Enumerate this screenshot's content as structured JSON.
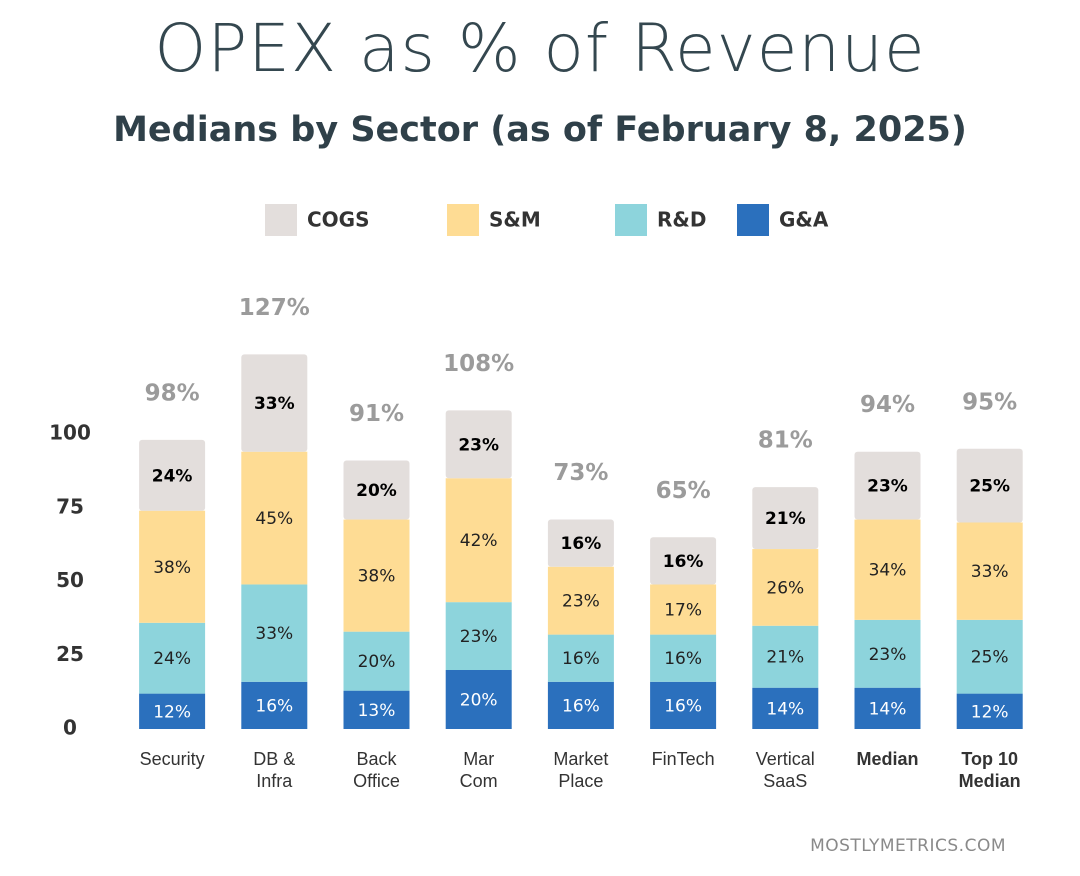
{
  "chart_data": {
    "type": "stacked_bar",
    "title": "OPEX as % of Revenue",
    "subtitle": "Medians by Sector (as of February 8, 2025)",
    "categories": [
      "Security",
      "DB & Infra",
      "Back Office",
      "Mar Com",
      "Market Place",
      "FinTech",
      "Vertical SaaS",
      "Median",
      "Top 10 Median"
    ],
    "series": [
      {
        "name": "G&A",
        "color": "#2b70bd",
        "label_color": "#ffffff",
        "values": [
          12,
          16,
          13,
          20,
          16,
          16,
          14,
          14,
          12
        ],
        "value_labels": [
          "12%",
          "16%",
          "13%",
          "20%",
          "16%",
          "16%",
          "14%",
          "14%",
          "12%"
        ]
      },
      {
        "name": "R&D",
        "color": "#8dd4dc",
        "label_color": "#222222",
        "values": [
          24,
          33,
          20,
          23,
          16,
          16,
          21,
          23,
          25
        ],
        "value_labels": [
          "24%",
          "33%",
          "20%",
          "23%",
          "16%",
          "16%",
          "21%",
          "23%",
          "25%"
        ]
      },
      {
        "name": "S&M",
        "color": "#fedc94",
        "label_color": "#222222",
        "values": [
          38,
          45,
          38,
          42,
          23,
          17,
          26,
          34,
          33
        ],
        "value_labels": [
          "38%",
          "45%",
          "38%",
          "42%",
          "23%",
          "17%",
          "26%",
          "34%",
          "33%"
        ]
      },
      {
        "name": "COGS",
        "color": "#e3dedc",
        "label_color": "#000000",
        "values": [
          24,
          33,
          20,
          23,
          16,
          16,
          21,
          23,
          25
        ],
        "value_labels": [
          "24%",
          "33%",
          "20%",
          "23%",
          "16%",
          "16%",
          "21%",
          "23%",
          "25%"
        ]
      }
    ],
    "totals": {
      "values": [
        98,
        127,
        91,
        108,
        73,
        65,
        81,
        94,
        95
      ],
      "value_labels": [
        "98%",
        "127%",
        "91%",
        "108%",
        "73%",
        "65%",
        "81%",
        "94%",
        "95%"
      ]
    },
    "ylim": [
      0,
      140
    ],
    "yticks": [
      0,
      25,
      50,
      75,
      100
    ],
    "grid": false,
    "footer": "MOSTLYMETRICS.COM"
  }
}
